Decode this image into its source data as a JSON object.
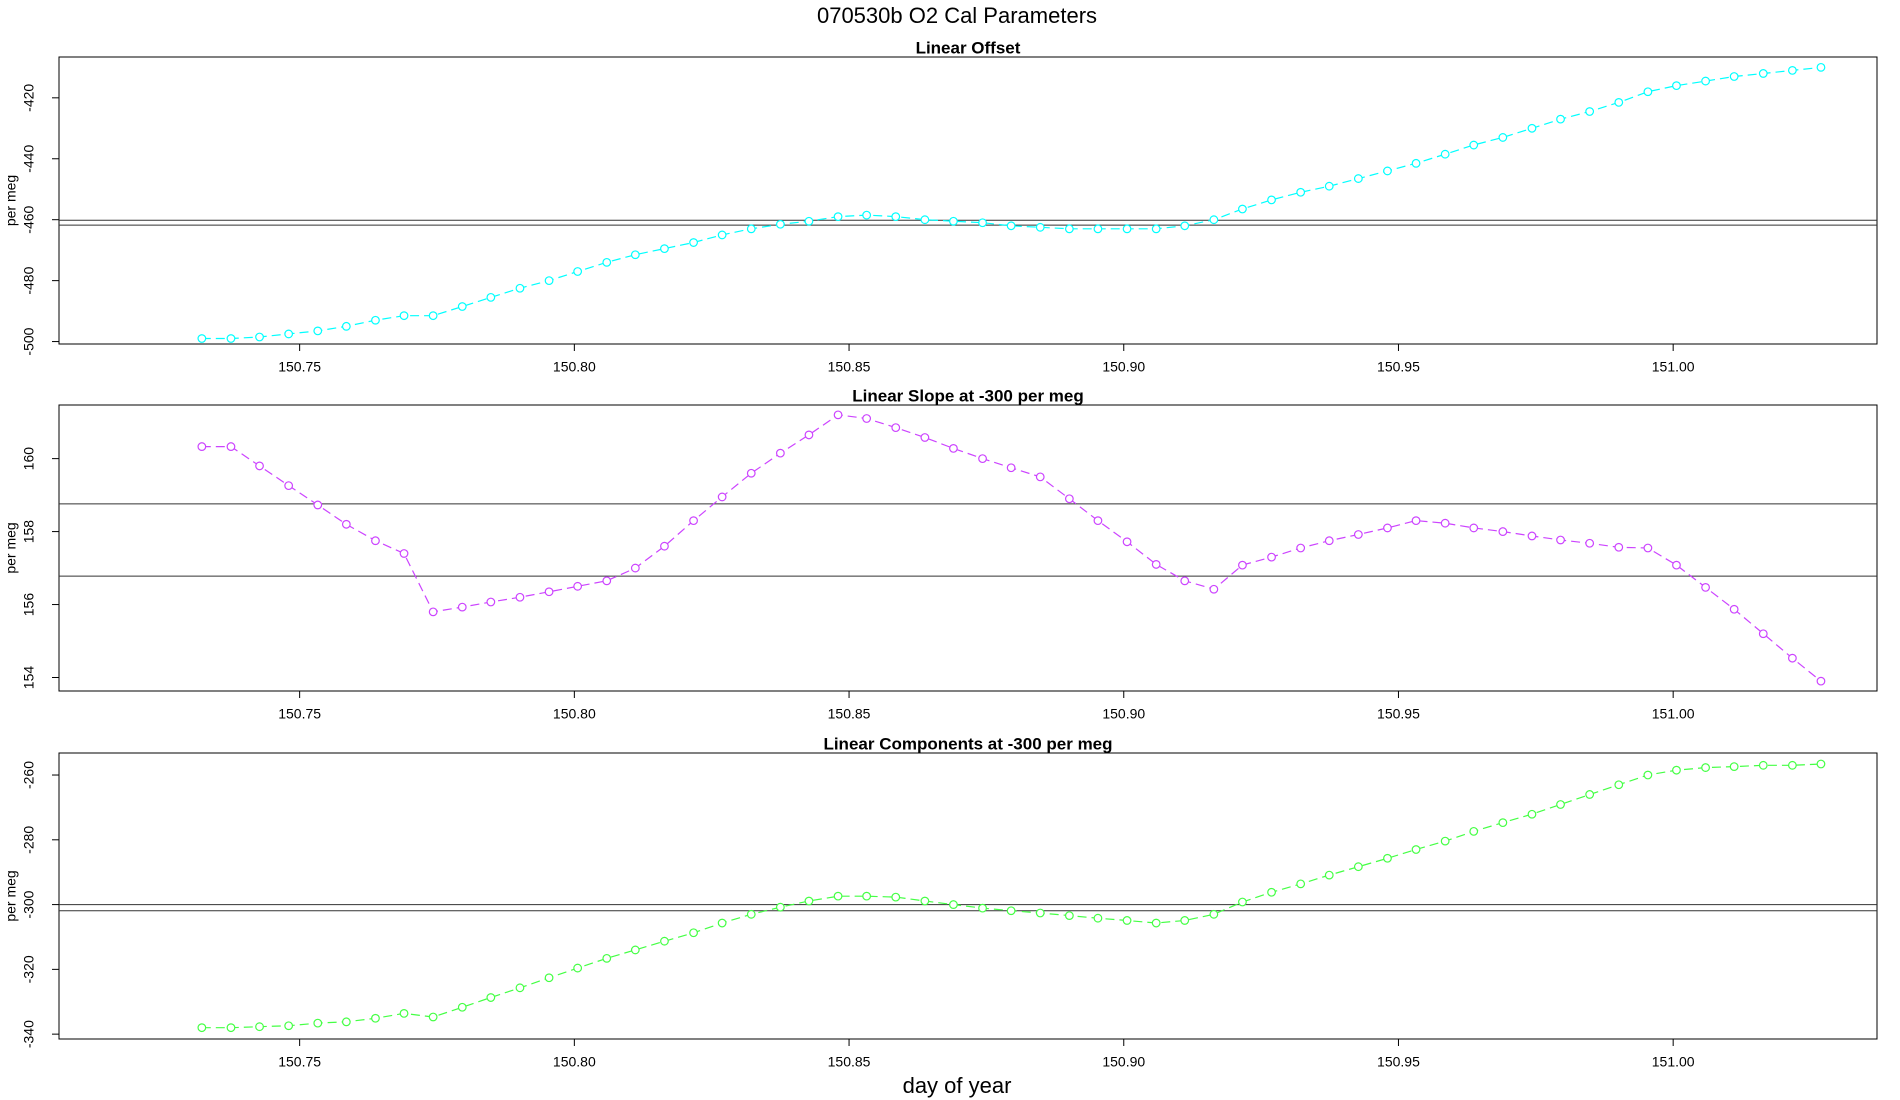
{
  "title": "070530b   O2 Cal Parameters",
  "xlabel": "day of year",
  "chart_data": [
    {
      "type": "line",
      "title": "Linear Offset",
      "ylabel": "per meg",
      "x": [
        150.7322,
        150.7375,
        150.7427,
        150.748,
        150.7533,
        150.7585,
        150.7638,
        150.769,
        150.7743,
        150.7796,
        150.7848,
        150.7901,
        150.7954,
        150.8006,
        150.8059,
        150.8111,
        150.8164,
        150.8217,
        150.8269,
        150.8322,
        150.8375,
        150.8427,
        150.848,
        150.8532,
        150.8585,
        150.8638,
        150.869,
        150.8743,
        150.8795,
        150.8848,
        150.8901,
        150.8953,
        150.9006,
        150.9059,
        150.9111,
        150.9164,
        150.9216,
        150.9269,
        150.9322,
        150.9374,
        150.9427,
        150.948,
        150.9532,
        150.9585,
        150.9637,
        150.969,
        150.9743,
        150.9795,
        150.9848,
        150.9901,
        150.9954,
        151.0006,
        151.0059,
        151.0111,
        151.0164,
        151.0217,
        151.0269
      ],
      "series": [
        {
          "color": "#00ffff",
          "values": [
            -499,
            -499,
            -498.5,
            -497.5,
            -496.5,
            -495,
            -493,
            -491.5,
            -491.5,
            -488.5,
            -485.5,
            -482.5,
            -480,
            -477,
            -474,
            -471.5,
            -469.5,
            -467.5,
            -465,
            -463,
            -461.5,
            -460.5,
            -459,
            -458.5,
            -459,
            -460,
            -460.5,
            -461,
            -462,
            -462.5,
            -463,
            -463,
            -463,
            -463,
            -462,
            -460,
            -456.5,
            -453.5,
            -451,
            -449,
            -446.5,
            -444,
            -441.5,
            -438.5,
            -435.5,
            -433,
            -430,
            -427,
            -424.5,
            -421.5,
            -418,
            -416,
            -414.5,
            -413,
            -412,
            -411,
            -410
          ]
        }
      ],
      "hlines": [
        -460.2,
        -461.8
      ],
      "xlim": [
        150.7062,
        151.0371
      ],
      "xticks": [
        150.75,
        {
          "value": 150.8,
          "label": "150.80"
        },
        150.85,
        {
          "value": 150.9,
          "label": "150.90"
        },
        150.95,
        {
          "value": 151.0,
          "label": "151.00"
        }
      ],
      "ylim": [
        -500.8,
        -406.6
      ],
      "yticks": [
        -500,
        -480,
        -460,
        -440,
        -420
      ]
    },
    {
      "type": "line",
      "title": "Linear Slope at -300 per meg",
      "ylabel": "per meg",
      "x": [
        150.7322,
        150.7375,
        150.7427,
        150.748,
        150.7533,
        150.7585,
        150.7638,
        150.769,
        150.7743,
        150.7796,
        150.7848,
        150.7901,
        150.7954,
        150.8006,
        150.8059,
        150.8111,
        150.8164,
        150.8217,
        150.8269,
        150.8322,
        150.8375,
        150.8427,
        150.848,
        150.8532,
        150.8585,
        150.8638,
        150.869,
        150.8743,
        150.8795,
        150.8848,
        150.8901,
        150.8953,
        150.9006,
        150.9059,
        150.9111,
        150.9164,
        150.9216,
        150.9269,
        150.9322,
        150.9374,
        150.9427,
        150.948,
        150.9532,
        150.9585,
        150.9637,
        150.969,
        150.9743,
        150.9795,
        150.9848,
        150.9901,
        150.9954,
        151.0006,
        151.0059,
        151.0111,
        151.0164,
        151.0217,
        151.0269
      ],
      "series": [
        {
          "color": "#cc44ff",
          "values": [
            160.33,
            160.33,
            159.8,
            159.26,
            158.73,
            158.2,
            157.75,
            157.4,
            155.8,
            155.93,
            156.07,
            156.2,
            156.35,
            156.5,
            156.65,
            157.0,
            157.6,
            158.3,
            158.95,
            159.6,
            160.15,
            160.65,
            161.2,
            161.1,
            160.85,
            160.58,
            160.28,
            160.0,
            159.75,
            159.5,
            158.9,
            158.3,
            157.72,
            157.1,
            156.65,
            156.42,
            157.08,
            157.3,
            157.55,
            157.75,
            157.92,
            158.1,
            158.3,
            158.23,
            158.1,
            158.0,
            157.88,
            157.77,
            157.68,
            157.57,
            157.55,
            157.08,
            156.47,
            155.87,
            155.2,
            154.53,
            153.9
          ]
        }
      ],
      "hlines": [
        158.76,
        156.78
      ],
      "xlim": [
        150.7062,
        151.0371
      ],
      "xticks": [
        150.75,
        {
          "value": 150.8,
          "label": "150.80"
        },
        150.85,
        {
          "value": 150.9,
          "label": "150.90"
        },
        150.95,
        {
          "value": 151.0,
          "label": "151.00"
        }
      ],
      "ylim": [
        153.63,
        161.47
      ],
      "yticks": [
        154,
        156,
        158,
        160
      ]
    },
    {
      "type": "line",
      "title": "Linear Components at -300 per meg",
      "ylabel": "per meg",
      "x": [
        150.7322,
        150.7375,
        150.7427,
        150.748,
        150.7533,
        150.7585,
        150.7638,
        150.769,
        150.7743,
        150.7796,
        150.7848,
        150.7901,
        150.7954,
        150.8006,
        150.8059,
        150.8111,
        150.8164,
        150.8217,
        150.8269,
        150.8322,
        150.8375,
        150.8427,
        150.848,
        150.8532,
        150.8585,
        150.8638,
        150.869,
        150.8743,
        150.8795,
        150.8848,
        150.8901,
        150.8953,
        150.9006,
        150.9059,
        150.9111,
        150.9164,
        150.9216,
        150.9269,
        150.9322,
        150.9374,
        150.9427,
        150.948,
        150.9532,
        150.9585,
        150.9637,
        150.969,
        150.9743,
        150.9795,
        150.9848,
        150.9901,
        150.9954,
        151.0006,
        151.0059,
        151.0111,
        151.0164,
        151.0217,
        151.0269
      ],
      "series": [
        {
          "color": "#44ff44",
          "values": [
            -338,
            -338,
            -337.7,
            -337.4,
            -336.6,
            -336.2,
            -335.1,
            -333.6,
            -334.7,
            -331.7,
            -328.7,
            -325.7,
            -322.6,
            -319.6,
            -316.6,
            -314,
            -311.3,
            -308.7,
            -305.7,
            -303,
            -300.8,
            -298.9,
            -297.4,
            -297.4,
            -297.7,
            -298.9,
            -300,
            -301.1,
            -301.9,
            -302.6,
            -303.4,
            -304.2,
            -304.9,
            -305.7,
            -304.9,
            -303,
            -299.2,
            -296.2,
            -293.6,
            -290.9,
            -288.3,
            -285.7,
            -283,
            -280.4,
            -277.4,
            -274.7,
            -272.1,
            -269.1,
            -266,
            -263,
            -260,
            -258.5,
            -257.7,
            -257.4,
            -257,
            -257,
            -256.6
          ]
        }
      ],
      "hlines": [
        -300,
        -301.9
      ],
      "xlim": [
        150.7062,
        151.0371
      ],
      "xticks": [
        150.75,
        {
          "value": 150.8,
          "label": "150.80"
        },
        150.85,
        {
          "value": 150.9,
          "label": "150.90"
        },
        150.95,
        {
          "value": 151.0,
          "label": "151.00"
        }
      ],
      "ylim": [
        -341.5,
        -253.2
      ],
      "yticks": [
        -340,
        -320,
        -300,
        -280,
        -260
      ]
    }
  ]
}
